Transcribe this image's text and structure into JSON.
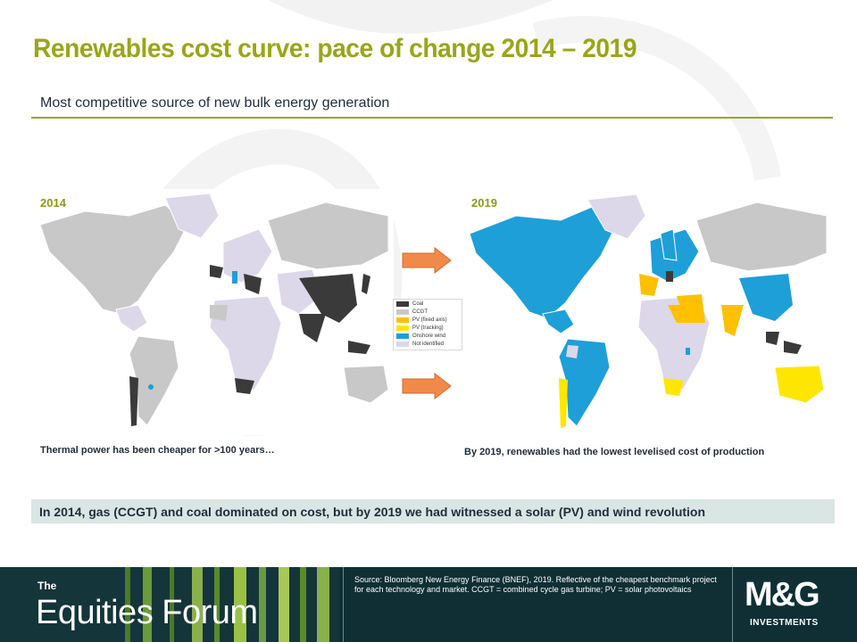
{
  "title": "Renewables cost curve: pace of change 2014 – 2019",
  "subtitle": "Most competitive source of new bulk energy generation",
  "colors": {
    "accent": "#9aa51a",
    "coal": "#3a3a3a",
    "ccgt": "#c8c8c8",
    "pv_fixed": "#ffc000",
    "pv_tracking": "#ffe600",
    "onshore_wind": "#1e9fd8",
    "not_identified": "#ddd7ea"
  },
  "maps": [
    {
      "year": "2014",
      "caption": "Thermal power has been cheaper for >100 years…"
    },
    {
      "year": "2019",
      "caption": "By 2019, renewables had the lowest levelised cost of production"
    }
  ],
  "legend": [
    {
      "label": "Coal",
      "color": "#3a3a3a"
    },
    {
      "label": "CCGT",
      "color": "#c8c8c8"
    },
    {
      "label": "PV (fixed axis)",
      "color": "#ffc000"
    },
    {
      "label": "PV (tracking)",
      "color": "#ffe600"
    },
    {
      "label": "Onshore wind",
      "color": "#1e9fd8"
    },
    {
      "label": "Not identified",
      "color": "#ddd7ea"
    }
  ],
  "banner": "In 2014, gas (CCGT) and coal dominated on cost, but by 2019 we had witnessed a solar (PV) and wind revolution",
  "footer": {
    "brand_the": "The",
    "brand_name": "Equities Forum",
    "source": "Source: Bloomberg New Energy Finance (BNEF), 2019. Reflective of the cheapest benchmark project for each technology and market. CCGT = combined cycle gas turbine; PV = solar photovoltaics",
    "logo": "M&G",
    "logo_sub": "INVESTMENTS"
  }
}
